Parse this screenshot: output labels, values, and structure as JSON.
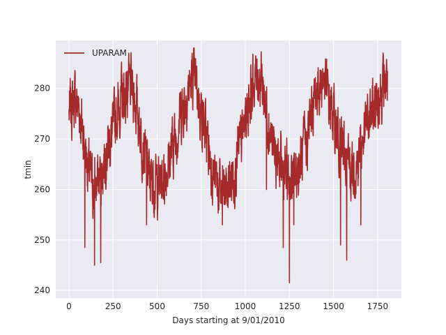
{
  "chart_data": {
    "type": "line",
    "title": "",
    "xlabel": "Days starting at 9/01/2010",
    "ylabel": "tmin",
    "xlim": [
      -75,
      1885
    ],
    "ylim": [
      238.5,
      289.5
    ],
    "xticks": [
      0,
      250,
      500,
      750,
      1000,
      1250,
      1500,
      1750
    ],
    "yticks": [
      240,
      250,
      260,
      270,
      280
    ],
    "grid": true,
    "legend": {
      "placement": "top-left",
      "entries": [
        "UPARAM"
      ]
    },
    "colors": {
      "plot_bg": "#eaeaf2",
      "grid": "#ffffff",
      "series": "#a52a2a"
    },
    "series": [
      {
        "name": "UPARAM",
        "color": "#a52a2a",
        "anchors_x": [
          0,
          30,
          60,
          85,
          110,
          140,
          170,
          190,
          210,
          240,
          270,
          300,
          320,
          340,
          360,
          380,
          400,
          420,
          445,
          460,
          500,
          530,
          560,
          600,
          640,
          670,
          700,
          720,
          740,
          770,
          800,
          830,
          860,
          900,
          940,
          980,
          1020,
          1050,
          1070,
          1090,
          1110,
          1140,
          1170,
          1200,
          1230,
          1260,
          1290,
          1320,
          1350,
          1380,
          1400,
          1420,
          1445,
          1470,
          1500,
          1520,
          1550,
          1580,
          1610,
          1640,
          1680,
          1720,
          1760,
          1790,
          1805
        ],
        "anchors_y": [
          275,
          278,
          276,
          270,
          264,
          260,
          262,
          264,
          268,
          270,
          275,
          278,
          279,
          280,
          280,
          277,
          273,
          269,
          264,
          262,
          261,
          262,
          265,
          270,
          276,
          279,
          282,
          281,
          277,
          272,
          266,
          262,
          259,
          260,
          264,
          270,
          278,
          281,
          283,
          282,
          278,
          272,
          266,
          264,
          263,
          262,
          263,
          266,
          270,
          276,
          279,
          281,
          282,
          278,
          274,
          271,
          268,
          265,
          264,
          266,
          272,
          275,
          279,
          281,
          282
        ],
        "dips": [
          [
            90,
            248.5
          ],
          [
            145,
            245
          ],
          [
            180,
            245.5
          ],
          [
            440,
            253
          ],
          [
            870,
            253
          ],
          [
            1120,
            260
          ],
          [
            1215,
            248.5
          ],
          [
            1250,
            241.5
          ],
          [
            1275,
            253
          ],
          [
            1540,
            249
          ],
          [
            1575,
            246
          ],
          [
            1655,
            253
          ]
        ],
        "sample_count": 1807,
        "seed": 7
      }
    ]
  }
}
